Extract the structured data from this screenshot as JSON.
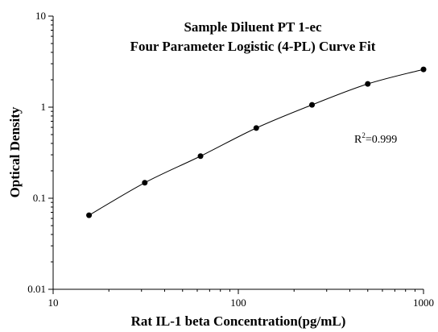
{
  "chart_data": {
    "type": "scatter",
    "title": "Sample Diluent PT 1-ec",
    "subtitle": "Four Parameter Logistic (4-PL) Curve Fit",
    "xlabel": "Rat IL-1 beta Concentration(pg/mL)",
    "ylabel": "Optical Density",
    "xscale": "log",
    "yscale": "log",
    "xlim": [
      10,
      1000
    ],
    "ylim": [
      0.01,
      10
    ],
    "x_ticks": [
      {
        "value": 10,
        "label": "10"
      },
      {
        "value": 100,
        "label": "100"
      },
      {
        "value": 1000,
        "label": "1000"
      }
    ],
    "y_ticks": [
      {
        "value": 0.01,
        "label": "0.01"
      },
      {
        "value": 0.1,
        "label": "0.1"
      },
      {
        "value": 1,
        "label": "1"
      },
      {
        "value": 10,
        "label": "10"
      }
    ],
    "series": [
      {
        "x": [
          15.625,
          31.25,
          62.5,
          125,
          250,
          500,
          1000
        ],
        "y": [
          0.065,
          0.148,
          0.29,
          0.59,
          1.06,
          1.8,
          2.6
        ]
      }
    ],
    "curve": "4-PL fit",
    "annotation": {
      "r2_label": "R",
      "r2_sup": "2",
      "r2_value": "=0.999"
    },
    "grid": false,
    "legend": "none",
    "colors": {
      "points": "#000000",
      "line": "#000000",
      "axes": "#000000"
    }
  }
}
